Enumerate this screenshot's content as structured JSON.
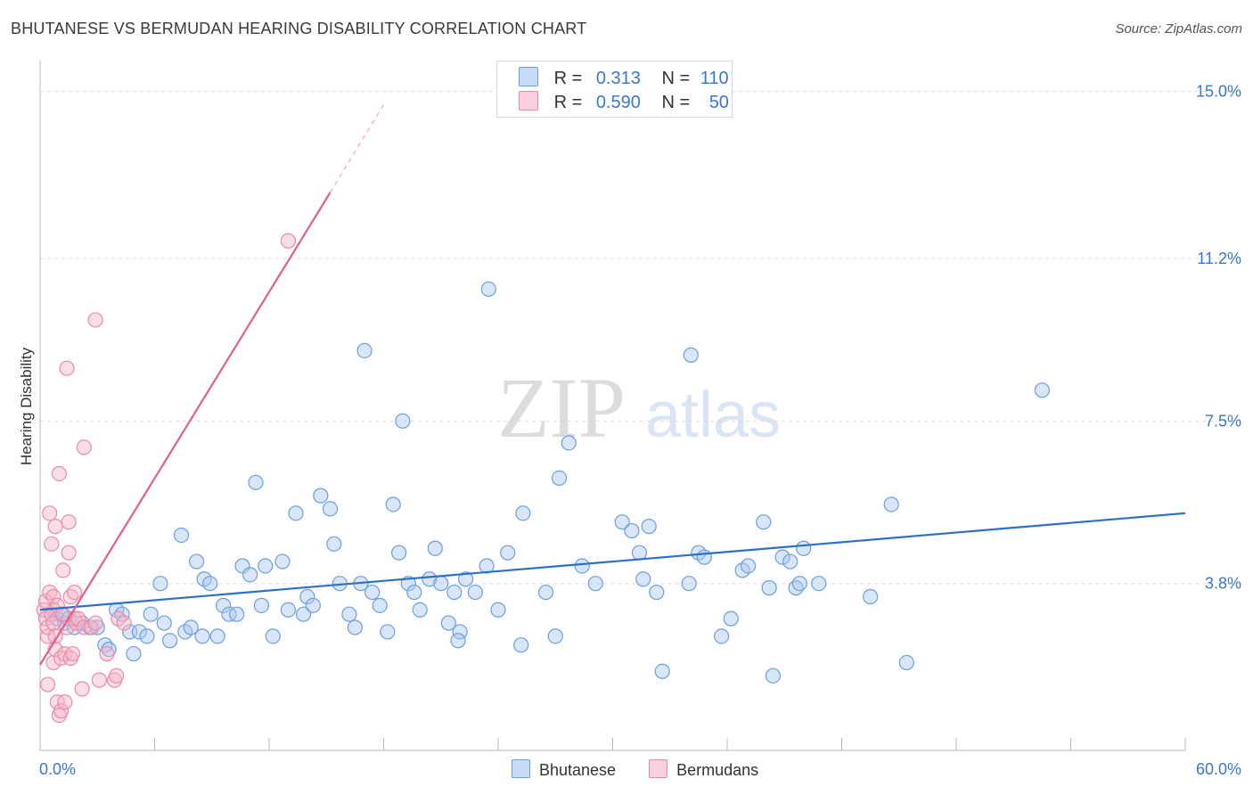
{
  "header": {
    "title": "BHUTANESE VS BERMUDAN HEARING DISABILITY CORRELATION CHART",
    "source": "Source: ZipAtlas.com"
  },
  "watermark": {
    "zip": "ZIP",
    "atlas": "atlas"
  },
  "legend": {
    "rows": [
      {
        "r_label": "R =",
        "r_value": "0.313",
        "n_label": "N =",
        "n_value": "110",
        "color": "#a8c8f0"
      },
      {
        "r_label": "R =",
        "r_value": "0.590",
        "n_label": "N =",
        "n_value": "50",
        "color": "#f5b5c8"
      }
    ]
  },
  "bottom_legend": [
    {
      "label": "Bhutanese",
      "color": "#a8c8f0"
    },
    {
      "label": "Bermudans",
      "color": "#f5b5c8"
    }
  ],
  "colors": {
    "blue_fill": "#a8c8f0",
    "blue_stroke": "#6a9fdc",
    "blue_line": "#2d6fcc",
    "pink_fill": "#f5b5c8",
    "pink_stroke": "#e98aa8",
    "pink_line": "#e0608a",
    "axis_text": "#3a78c9",
    "grid": "#dddddd"
  },
  "chart_data": {
    "type": "scatter",
    "title": "BHUTANESE VS BERMUDAN HEARING DISABILITY CORRELATION CHART",
    "ylabel": "Hearing Disability",
    "xlabel": "",
    "xlim": [
      0,
      60
    ],
    "ylim": [
      0,
      15.5
    ],
    "x_tick_labels": [
      "0.0%",
      "60.0%"
    ],
    "y_ticks": [
      3.8,
      7.5,
      11.2,
      15.0
    ],
    "y_tick_labels": [
      "3.8%",
      "7.5%",
      "11.2%",
      "15.0%"
    ],
    "grid": "horizontal dashed",
    "legend_position": "top-center",
    "series": [
      {
        "name": "Bhutanese",
        "r": 0.313,
        "n": 110,
        "trend": {
          "x0": 0,
          "y0": 3.2,
          "x1": 60,
          "y1": 5.4
        },
        "points": [
          [
            0.7,
            3.2
          ],
          [
            0.9,
            3.0
          ],
          [
            1.1,
            3.1
          ],
          [
            1.3,
            2.9
          ],
          [
            1.5,
            3.0
          ],
          [
            1.8,
            2.8
          ],
          [
            2.2,
            2.9
          ],
          [
            2.6,
            2.8
          ],
          [
            3.0,
            2.8
          ],
          [
            3.4,
            2.4
          ],
          [
            3.6,
            2.3
          ],
          [
            4.0,
            3.2
          ],
          [
            4.3,
            3.1
          ],
          [
            4.7,
            2.7
          ],
          [
            4.9,
            2.2
          ],
          [
            5.2,
            2.7
          ],
          [
            5.6,
            2.6
          ],
          [
            5.8,
            3.1
          ],
          [
            6.3,
            3.8
          ],
          [
            6.5,
            2.9
          ],
          [
            6.8,
            2.5
          ],
          [
            7.4,
            4.9
          ],
          [
            7.6,
            2.7
          ],
          [
            7.9,
            2.8
          ],
          [
            8.2,
            4.3
          ],
          [
            8.6,
            3.9
          ],
          [
            8.9,
            3.8
          ],
          [
            9.3,
            2.6
          ],
          [
            9.6,
            3.3
          ],
          [
            9.9,
            3.1
          ],
          [
            10.3,
            3.1
          ],
          [
            10.6,
            4.2
          ],
          [
            11.0,
            4.0
          ],
          [
            11.3,
            6.1
          ],
          [
            11.6,
            3.3
          ],
          [
            11.8,
            4.2
          ],
          [
            12.2,
            2.6
          ],
          [
            12.7,
            4.3
          ],
          [
            13.0,
            3.2
          ],
          [
            13.4,
            5.4
          ],
          [
            13.8,
            3.1
          ],
          [
            14.0,
            3.5
          ],
          [
            14.3,
            3.3
          ],
          [
            14.7,
            5.8
          ],
          [
            15.2,
            5.5
          ],
          [
            15.4,
            4.7
          ],
          [
            15.7,
            3.8
          ],
          [
            16.2,
            3.1
          ],
          [
            16.5,
            2.8
          ],
          [
            16.8,
            3.8
          ],
          [
            17.0,
            9.1
          ],
          [
            17.4,
            3.6
          ],
          [
            17.8,
            3.3
          ],
          [
            18.2,
            2.7
          ],
          [
            18.5,
            5.6
          ],
          [
            18.8,
            4.5
          ],
          [
            19.0,
            7.5
          ],
          [
            19.3,
            3.8
          ],
          [
            19.6,
            3.6
          ],
          [
            19.9,
            3.2
          ],
          [
            20.4,
            3.9
          ],
          [
            20.7,
            4.6
          ],
          [
            21.0,
            3.8
          ],
          [
            21.4,
            2.9
          ],
          [
            21.7,
            3.6
          ],
          [
            22.0,
            2.7
          ],
          [
            22.3,
            3.9
          ],
          [
            22.8,
            3.6
          ],
          [
            23.4,
            4.2
          ],
          [
            23.5,
            10.5
          ],
          [
            24.0,
            3.2
          ],
          [
            24.5,
            4.5
          ],
          [
            25.2,
            2.4
          ],
          [
            25.3,
            5.4
          ],
          [
            26.5,
            3.6
          ],
          [
            27.0,
            2.6
          ],
          [
            27.2,
            6.2
          ],
          [
            27.7,
            7.0
          ],
          [
            28.4,
            4.2
          ],
          [
            29.1,
            3.8
          ],
          [
            30.5,
            5.2
          ],
          [
            31.0,
            5.0
          ],
          [
            31.4,
            4.5
          ],
          [
            31.6,
            3.9
          ],
          [
            31.9,
            5.1
          ],
          [
            32.3,
            3.6
          ],
          [
            32.6,
            1.8
          ],
          [
            34.0,
            3.8
          ],
          [
            34.1,
            9.0
          ],
          [
            34.5,
            4.5
          ],
          [
            34.8,
            4.4
          ],
          [
            35.7,
            2.6
          ],
          [
            36.2,
            3.0
          ],
          [
            36.8,
            4.1
          ],
          [
            37.1,
            4.2
          ],
          [
            37.9,
            5.2
          ],
          [
            38.2,
            3.7
          ],
          [
            38.4,
            1.7
          ],
          [
            38.9,
            4.4
          ],
          [
            39.3,
            4.3
          ],
          [
            39.6,
            3.7
          ],
          [
            39.8,
            3.8
          ],
          [
            40.0,
            4.6
          ],
          [
            40.8,
            3.8
          ],
          [
            43.5,
            3.5
          ],
          [
            44.6,
            5.6
          ],
          [
            45.4,
            2.0
          ],
          [
            52.5,
            8.2
          ],
          [
            8.5,
            2.6
          ],
          [
            21.9,
            2.5
          ]
        ]
      },
      {
        "name": "Bermudans",
        "r": 0.59,
        "n": 50,
        "trend": {
          "x0": 0,
          "y0": 1.95,
          "x1": 15.2,
          "y1": 12.7,
          "dash_to": {
            "x": 18.0,
            "y": 14.7
          }
        },
        "points": [
          [
            0.2,
            3.2
          ],
          [
            0.3,
            3.0
          ],
          [
            0.3,
            3.4
          ],
          [
            0.4,
            2.6
          ],
          [
            0.4,
            2.8
          ],
          [
            0.4,
            1.5
          ],
          [
            0.5,
            3.6
          ],
          [
            0.5,
            5.4
          ],
          [
            0.6,
            4.7
          ],
          [
            0.6,
            3.1
          ],
          [
            0.7,
            2.9
          ],
          [
            0.7,
            2.0
          ],
          [
            0.7,
            3.5
          ],
          [
            0.8,
            5.1
          ],
          [
            0.8,
            2.6
          ],
          [
            0.8,
            2.3
          ],
          [
            0.9,
            1.1
          ],
          [
            0.9,
            3.3
          ],
          [
            1.0,
            6.3
          ],
          [
            1.0,
            0.8
          ],
          [
            1.1,
            2.1
          ],
          [
            1.1,
            0.9
          ],
          [
            1.2,
            4.1
          ],
          [
            1.2,
            3.1
          ],
          [
            1.3,
            2.2
          ],
          [
            1.3,
            1.1
          ],
          [
            1.4,
            8.7
          ],
          [
            1.4,
            2.8
          ],
          [
            1.5,
            4.5
          ],
          [
            1.5,
            5.2
          ],
          [
            1.6,
            3.5
          ],
          [
            1.6,
            2.1
          ],
          [
            1.7,
            2.2
          ],
          [
            1.8,
            3.6
          ],
          [
            1.8,
            3.0
          ],
          [
            1.9,
            2.9
          ],
          [
            2.0,
            3.0
          ],
          [
            2.2,
            1.4
          ],
          [
            2.3,
            6.9
          ],
          [
            2.3,
            2.8
          ],
          [
            2.7,
            2.8
          ],
          [
            2.9,
            2.9
          ],
          [
            3.1,
            1.6
          ],
          [
            3.5,
            2.2
          ],
          [
            3.9,
            1.6
          ],
          [
            4.1,
            3.0
          ],
          [
            4.4,
            2.9
          ],
          [
            4.0,
            1.7
          ],
          [
            2.9,
            9.8
          ],
          [
            13.0,
            11.6
          ]
        ]
      }
    ]
  }
}
